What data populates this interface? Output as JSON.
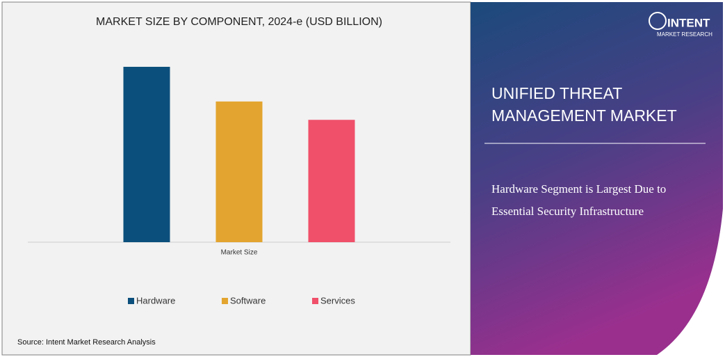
{
  "chart_data": {
    "type": "bar",
    "title": "MARKET SIZE BY COMPONENT, 2024-e (USD BILLION)",
    "categories": [
      "Market Size"
    ],
    "series": [
      {
        "name": "Hardware",
        "color": "#0b4f7c",
        "values": [
          86
        ]
      },
      {
        "name": "Software",
        "color": "#e3a52f",
        "values": [
          69
        ]
      },
      {
        "name": "Services",
        "color": "#f0506a",
        "values": [
          60
        ]
      }
    ],
    "ylim": [
      0,
      100
    ],
    "grid": false,
    "legend": "bottom",
    "source": "Source: Intent Market Research Analysis"
  },
  "panel": {
    "logo": "INTENT",
    "logo_sub": "MARKET RESEARCH",
    "heading": [
      "UNIFIED THREAT",
      "MANAGEMENT MARKET"
    ],
    "subtitle": [
      "Hardware Segment is Largest Due to",
      "Essential Security Infrastructure"
    ]
  }
}
